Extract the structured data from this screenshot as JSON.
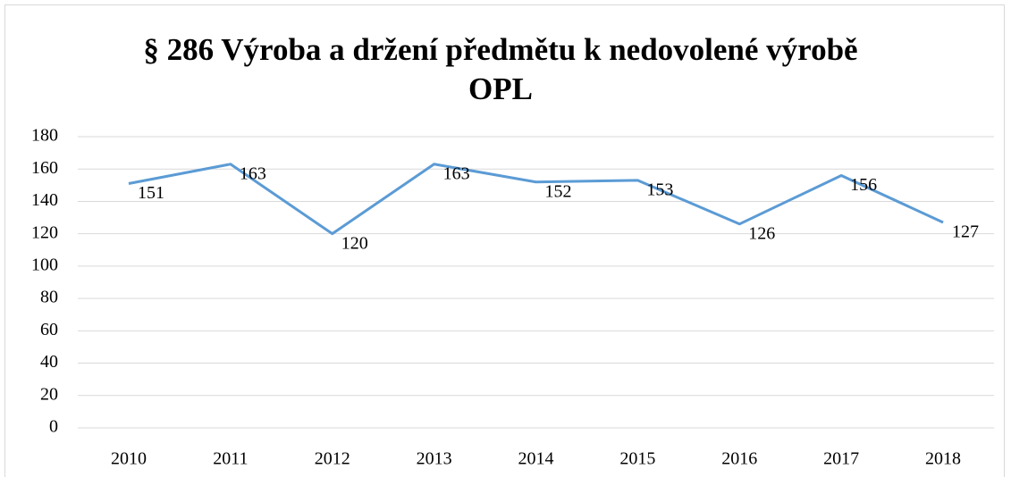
{
  "chart_data": {
    "type": "line",
    "title": "§ 286 Výroba a držení předmětu k nedovolené výrobě OPL",
    "categories": [
      "2010",
      "2011",
      "2012",
      "2013",
      "2014",
      "2015",
      "2016",
      "2017",
      "2018"
    ],
    "values": [
      151,
      163,
      120,
      163,
      152,
      153,
      126,
      156,
      127
    ],
    "color": "#5b9bd5",
    "ylim": [
      0,
      180
    ],
    "yticks": [
      0,
      20,
      40,
      60,
      80,
      100,
      120,
      140,
      160,
      180
    ],
    "grid": true
  }
}
